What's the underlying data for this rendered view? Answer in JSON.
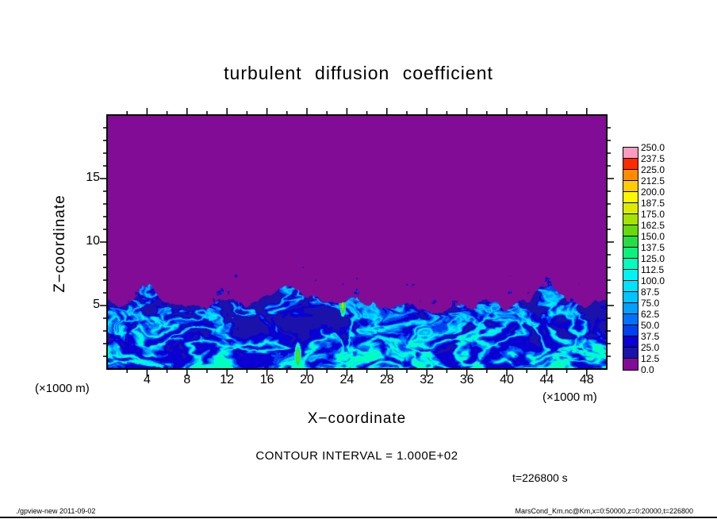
{
  "title": "turbulent diffusion coefficient",
  "axes": {
    "x": {
      "label": "X−coordinate",
      "unit": "(×1000 m)",
      "min": 0,
      "max": 50,
      "minor_step": 2,
      "major_step": 4,
      "major_ticks": [
        4,
        8,
        12,
        16,
        20,
        24,
        28,
        32,
        36,
        40,
        44,
        48
      ]
    },
    "z": {
      "label": "Z−coordinate",
      "unit": "(×1000 m)",
      "min": 0,
      "max": 20,
      "minor_step": 1,
      "major_step": 5,
      "major_ticks": [
        5,
        10,
        15
      ]
    }
  },
  "annotations": {
    "contour_interval": "CONTOUR INTERVAL = 1.000E+02",
    "time": "t=226800 s"
  },
  "footer": {
    "left": "./gpview-new  2011-09-02",
    "right": "MarsCond_Km.nc@Km,x=0:50000,z=0:20000,t=226800"
  },
  "colorbar": {
    "labels": [
      "0.0",
      "12.5",
      "25.0",
      "37.5",
      "50.0",
      "62.5",
      "75.0",
      "87.5",
      "100.0",
      "112.5",
      "125.0",
      "137.5",
      "150.0",
      "162.5",
      "175.0",
      "187.5",
      "200.0",
      "212.5",
      "225.0",
      "237.5",
      "250.0"
    ]
  },
  "chart_data": {
    "type": "heatmap",
    "title": "turbulent diffusion coefficient",
    "xlabel": "X-coordinate (×1000 m)",
    "ylabel": "Z-coordinate (×1000 m)",
    "xlim": [
      0,
      50
    ],
    "zlim": [
      0,
      20
    ],
    "contour_interval": 100.0,
    "time_s": 226800,
    "levels": [
      0,
      12.5,
      25,
      37.5,
      50,
      62.5,
      75,
      87.5,
      100,
      112.5,
      125,
      137.5,
      150,
      162.5,
      175,
      187.5,
      200,
      212.5,
      225,
      237.5,
      250
    ],
    "palette": [
      "#820c96",
      "#1a12aa",
      "#0a00d2",
      "#0040f0",
      "#0072ff",
      "#00a0ff",
      "#00c4ff",
      "#00e0ff",
      "#00f4f4",
      "#00ffbe",
      "#0af27c",
      "#28dc46",
      "#66da0c",
      "#a4e400",
      "#dcec00",
      "#fcf800",
      "#ffcc00",
      "#ff8c00",
      "#ff2a00",
      "#fa9cbe"
    ],
    "description": "Quiescent region (K≈0–12.5, purple) above z≈5–6; turbulent convective boundary layer below with filamentary eddies K≈25–125 (blue–cyan), detached speckles just above the interface, and isolated maxima K≈150–180 near x≈19–24.",
    "interface_profile": {
      "x_start": 0,
      "x_step": 2,
      "z": [
        5.6,
        5.0,
        6.6,
        5.4,
        5.2,
        5.0,
        5.4,
        5.1,
        5.8,
        6.8,
        6.0,
        5.3,
        5.6,
        5.0,
        4.8,
        5.2,
        4.7,
        4.6,
        4.9,
        5.3,
        4.6,
        5.7,
        6.3,
        5.5,
        5.2,
        5.4
      ]
    },
    "hotspots": [
      {
        "x": 23.6,
        "z": 5.0,
        "rx": 0.3,
        "rz": 0.9,
        "value": 170
      },
      {
        "x": 19.1,
        "z": 1.0,
        "rx": 0.35,
        "rz": 1.1,
        "value": 160
      }
    ],
    "noise_seed": 7
  }
}
